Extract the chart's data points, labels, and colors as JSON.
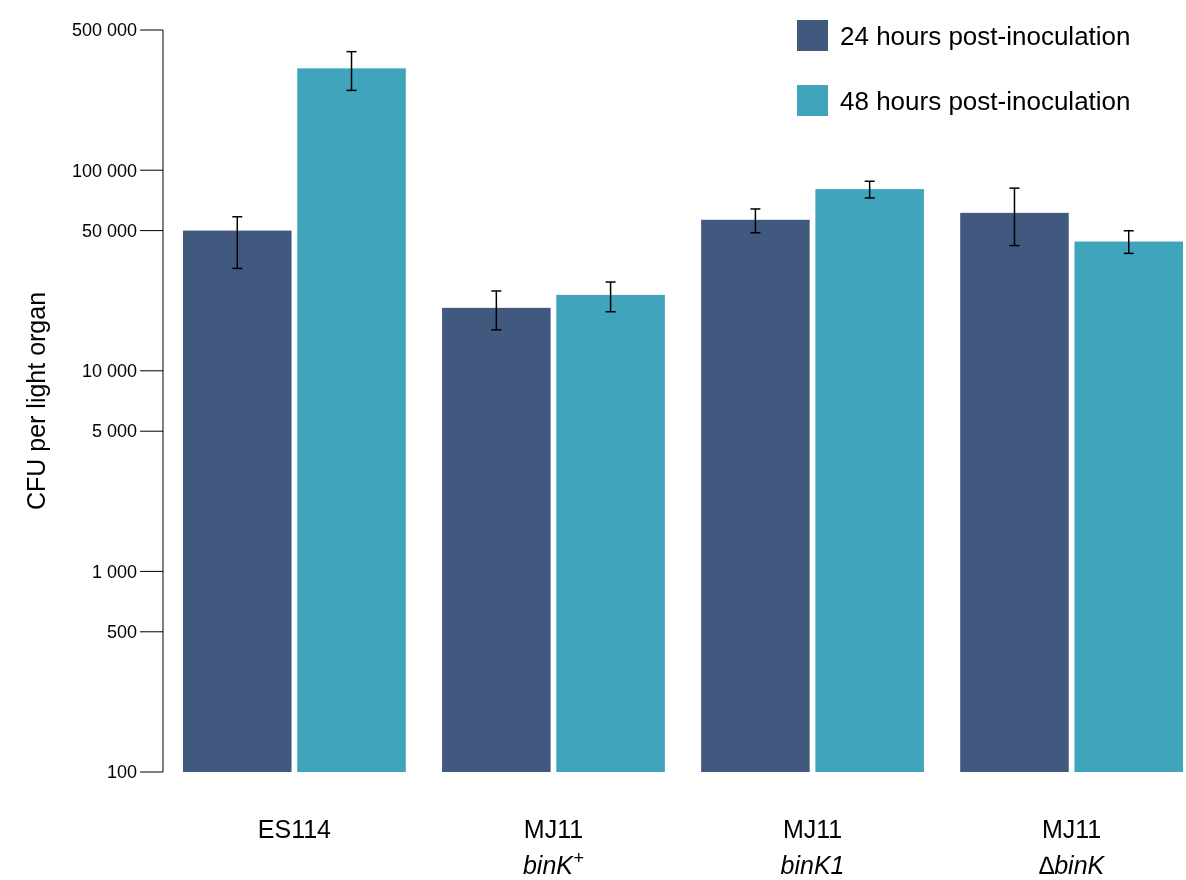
{
  "chart_data": {
    "type": "bar",
    "ylabel": "CFU per light organ",
    "categories": [
      "ES114",
      "MJ11\nbinK$^{+}$",
      "MJ11\nbinK1",
      "MJ11\n∆binK"
    ],
    "series": [
      {
        "name": "24 hours post-inoculation",
        "color": "#41587f",
        "values": [
          50000,
          20600,
          56600,
          61300
        ],
        "errors": [
          [
            32400,
            58600
          ],
          [
            16000,
            25000
          ],
          [
            48800,
            64100
          ],
          [
            42100,
            81400
          ]
        ]
      },
      {
        "name": "48 hours post-inoculation",
        "color": "#3fa4bc",
        "values": [
          322000,
          23900,
          80500,
          44100
        ],
        "errors": [
          [
            250000,
            390000
          ],
          [
            19700,
            27700
          ],
          [
            72700,
            88100
          ],
          [
            38500,
            49900
          ]
        ]
      }
    ],
    "log": true,
    "ylim": [
      100,
      500000
    ],
    "yticks": [
      {
        "value": 100,
        "label": "100"
      },
      {
        "value": 500,
        "label": "500"
      },
      {
        "value": 1000,
        "label": "1 000"
      },
      {
        "value": 5000,
        "label": "5 000"
      },
      {
        "value": 10000,
        "label": "10 000"
      },
      {
        "value": 50000,
        "label": "50 000"
      },
      {
        "value": 100000,
        "label": "100 000"
      },
      {
        "value": 500000,
        "label": "500 000"
      }
    ],
    "grid": false,
    "legend": "top right"
  }
}
